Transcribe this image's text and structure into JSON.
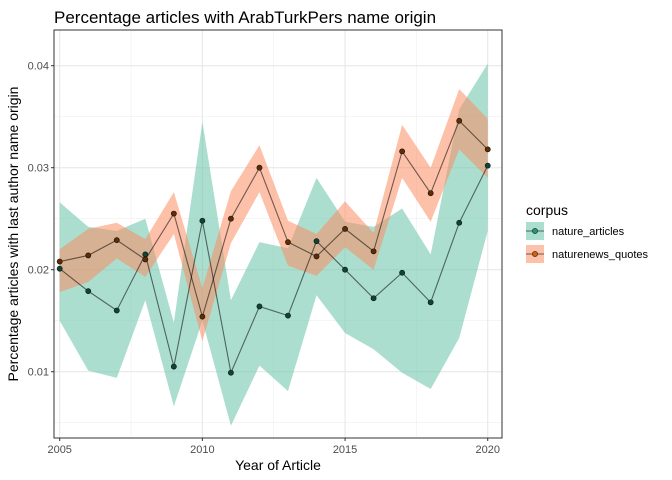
{
  "chart_data": {
    "type": "line",
    "title": "Percentage articles with ArabTurkPers name origin",
    "xlabel": "Year of Article",
    "ylabel": "Percentage articles with last author name origin",
    "x": [
      2005,
      2006,
      2007,
      2008,
      2009,
      2010,
      2011,
      2012,
      2013,
      2014,
      2015,
      2016,
      2017,
      2018,
      2019,
      2020
    ],
    "xlim": [
      2004.8,
      2020.5
    ],
    "ylim": [
      0.0035,
      0.0435
    ],
    "xticks": [
      2005,
      2010,
      2015,
      2020
    ],
    "xtick_labels": [
      "2005",
      "2010",
      "2015",
      "2020"
    ],
    "yticks": [
      0.01,
      0.02,
      0.03,
      0.04
    ],
    "ytick_labels": [
      "0.01",
      "0.02",
      "0.03",
      "0.04"
    ],
    "grid": true,
    "legend": {
      "title": "corpus",
      "position": "right"
    },
    "series": [
      {
        "name": "nature_articles",
        "color": "#1b9e77",
        "band_color": "#66c2a5",
        "values": [
          0.0201,
          0.0179,
          0.016,
          0.0215,
          0.0105,
          0.0248,
          0.0099,
          0.0164,
          0.0155,
          0.0228,
          0.02,
          0.0172,
          0.0197,
          0.0168,
          0.0246,
          0.0302
        ],
        "lower": [
          0.015,
          0.0101,
          0.0094,
          0.017,
          0.0066,
          0.015,
          0.0047,
          0.0106,
          0.0081,
          0.0175,
          0.0138,
          0.0122,
          0.0099,
          0.0083,
          0.0133,
          0.0238
        ],
        "upper": [
          0.0266,
          0.0242,
          0.0238,
          0.025,
          0.0148,
          0.0345,
          0.017,
          0.0227,
          0.0221,
          0.029,
          0.0247,
          0.0242,
          0.026,
          0.0215,
          0.0357,
          0.0402
        ]
      },
      {
        "name": "naturenews_quotes",
        "color": "#d95f02",
        "band_color": "#fc8d62",
        "values": [
          0.0208,
          0.0214,
          0.0229,
          0.021,
          0.0255,
          0.0154,
          0.025,
          0.03,
          0.0227,
          0.0213,
          0.024,
          0.0218,
          0.0316,
          0.0275,
          0.0346,
          0.0318
        ],
        "lower": [
          0.0178,
          0.0188,
          0.0211,
          0.0193,
          0.0235,
          0.013,
          0.0226,
          0.0276,
          0.0204,
          0.0194,
          0.0222,
          0.02,
          0.029,
          0.0247,
          0.0318,
          0.029
        ],
        "upper": [
          0.022,
          0.024,
          0.0246,
          0.023,
          0.0276,
          0.0182,
          0.0277,
          0.0322,
          0.0248,
          0.0235,
          0.0267,
          0.0236,
          0.0342,
          0.03,
          0.0377,
          0.0348
        ]
      }
    ]
  }
}
